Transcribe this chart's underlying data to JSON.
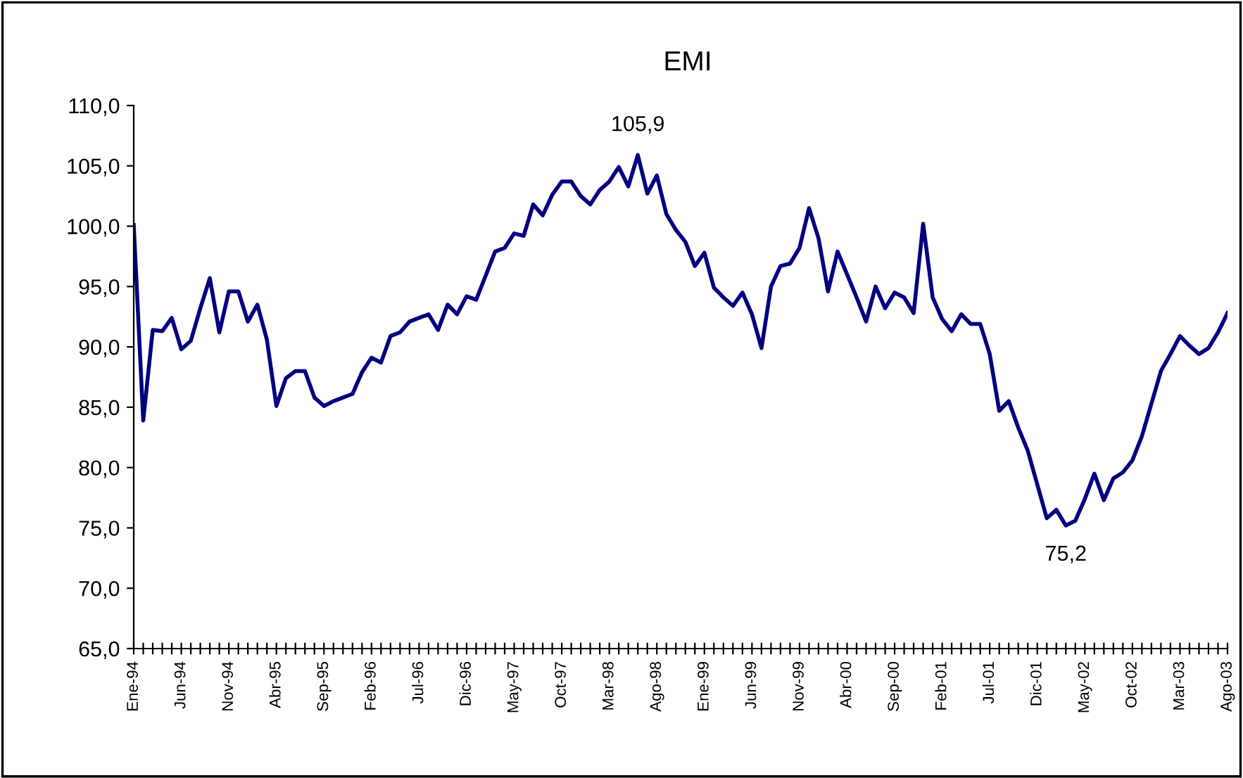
{
  "chart_data": {
    "type": "line",
    "title": "EMI",
    "categories": [
      "Ene-94",
      null,
      null,
      null,
      null,
      "Jun-94",
      null,
      null,
      null,
      null,
      "Nov-94",
      null,
      null,
      null,
      null,
      "Abr-95",
      null,
      null,
      null,
      null,
      "Sep-95",
      null,
      null,
      null,
      null,
      "Feb-96",
      null,
      null,
      null,
      null,
      "Jul-96",
      null,
      null,
      null,
      null,
      "Dic-96",
      null,
      null,
      null,
      null,
      "May-97",
      null,
      null,
      null,
      null,
      "Oct-97",
      null,
      null,
      null,
      null,
      "Mar-98",
      null,
      null,
      null,
      null,
      "Ago-98",
      null,
      null,
      null,
      null,
      "Ene-99",
      null,
      null,
      null,
      null,
      "Jun-99",
      null,
      null,
      null,
      null,
      "Nov-99",
      null,
      null,
      null,
      null,
      "Abr-00",
      null,
      null,
      null,
      null,
      "Sep-00",
      null,
      null,
      null,
      null,
      "Feb-01",
      null,
      null,
      null,
      null,
      "Jul-01",
      null,
      null,
      null,
      null,
      "Dic-01",
      null,
      null,
      null,
      null,
      "May-02",
      null,
      null,
      null,
      null,
      "Oct-02",
      null,
      null,
      null,
      null,
      "Mar-03",
      null,
      null,
      null,
      null,
      "Ago-03"
    ],
    "series": [
      {
        "color": "#000080",
        "values": [
          100.1,
          83.9,
          91.4,
          91.3,
          92.4,
          89.8,
          90.5,
          93.2,
          95.7,
          91.2,
          94.6,
          94.6,
          92.1,
          93.5,
          90.6,
          85.1,
          87.4,
          88.0,
          88.0,
          85.8,
          85.1,
          85.5,
          85.8,
          86.1,
          87.9,
          89.1,
          88.7,
          90.9,
          91.2,
          92.1,
          92.4,
          92.7,
          91.4,
          93.5,
          92.7,
          94.2,
          93.9,
          95.9,
          97.9,
          98.2,
          99.4,
          99.2,
          101.8,
          100.9,
          102.6,
          103.7,
          103.7,
          102.5,
          101.8,
          103.0,
          103.7,
          104.9,
          103.3,
          105.9,
          102.7,
          104.2,
          101.0,
          99.7,
          98.7,
          96.7,
          97.8,
          94.9,
          94.1,
          93.4,
          94.5,
          92.7,
          89.9,
          95.0,
          96.7,
          96.9,
          98.2,
          101.5,
          99.0,
          94.6,
          97.9,
          96.0,
          94.1,
          92.1,
          95.0,
          93.2,
          94.5,
          94.1,
          92.8,
          100.2,
          94.1,
          92.3,
          91.3,
          92.7,
          91.9,
          91.9,
          89.4,
          84.7,
          85.5,
          83.3,
          81.4,
          78.6,
          75.8,
          76.5,
          75.2,
          75.6,
          77.4,
          79.5,
          77.3,
          79.1,
          79.6,
          80.6,
          82.6,
          85.3,
          88.0,
          89.4,
          90.9,
          90.1,
          89.4,
          89.9,
          91.2,
          92.8
        ]
      }
    ],
    "ylim": [
      65,
      110
    ],
    "yticks": [
      {
        "value": 65,
        "label": "65,0"
      },
      {
        "value": 70,
        "label": "70,0"
      },
      {
        "value": 75,
        "label": "75,0"
      },
      {
        "value": 80,
        "label": "80,0"
      },
      {
        "value": 85,
        "label": "85,0"
      },
      {
        "value": 90,
        "label": "90,0"
      },
      {
        "value": 95,
        "label": "95,0"
      },
      {
        "value": 100,
        "label": "100,0"
      },
      {
        "value": 105,
        "label": "105,0"
      },
      {
        "value": 110,
        "label": "110,0"
      }
    ],
    "annotations": [
      {
        "text": "105,9",
        "y": 105.9
      },
      {
        "text": "75,2",
        "y": 75.2
      }
    ],
    "marker": "none",
    "line_style": "solid",
    "grid": false,
    "legend": false
  }
}
